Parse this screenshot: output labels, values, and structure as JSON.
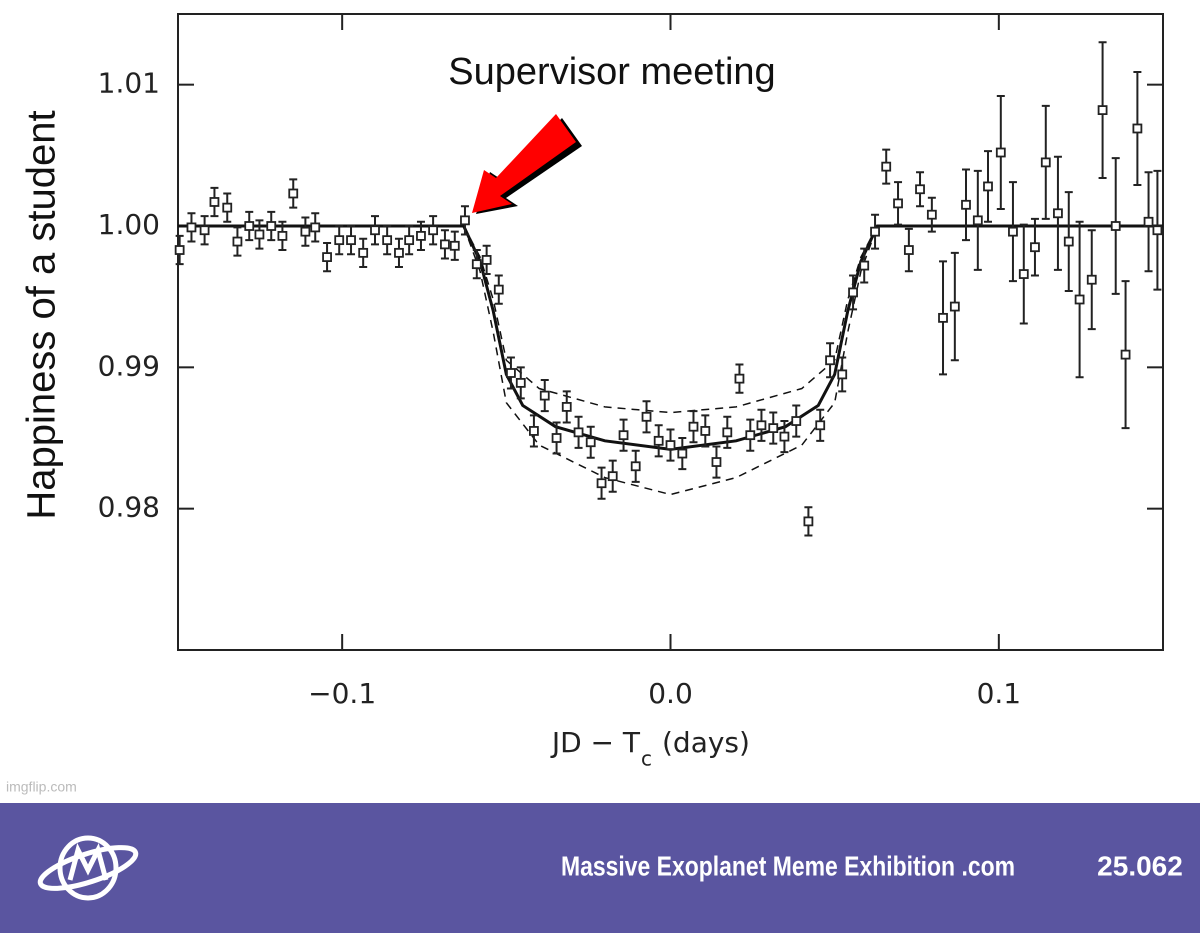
{
  "chart_data": {
    "type": "scatter",
    "annotation": "Supervisor meeting",
    "ylabel": "Happiness of a student",
    "xlabel": "JD − T",
    "xlabel_sub": "c",
    "xlim": [
      -0.15,
      0.15
    ],
    "ylim": [
      0.97,
      1.015
    ],
    "xticks": [
      {
        "value": -0.1,
        "label": "−0.1"
      },
      {
        "value": 0,
        "label": "0.0"
      },
      {
        "value": 0.1,
        "label": "0.1"
      }
    ],
    "yticks": [
      0.98,
      0.99,
      {
        "value": 1.0,
        "label": "1.00"
      },
      1.01
    ],
    "series": [
      {
        "color": "#222222",
        "x": [
          -0.1495,
          -0.1459,
          -0.1419,
          -0.1389,
          -0.135,
          -0.1319,
          -0.1283,
          -0.1252,
          -0.1216,
          -0.1182,
          -0.1149,
          -0.1112,
          -0.1082,
          -0.1046,
          -0.1009,
          -0.0973,
          -0.0936,
          -0.09,
          -0.0863,
          -0.0827,
          -0.0796,
          -0.076,
          -0.0723,
          -0.0687,
          -0.0657,
          -0.0626,
          -0.059,
          -0.056,
          -0.0523,
          -0.0486,
          -0.0456,
          -0.0416,
          -0.0383,
          -0.0347,
          -0.0316,
          -0.028,
          -0.0243,
          -0.021,
          -0.0176,
          -0.0143,
          -0.0106,
          -0.0073,
          -0.0036,
          0,
          0.0036,
          0.007,
          0.0106,
          0.014,
          0.0173,
          0.021,
          0.0243,
          0.0277,
          0.0313,
          0.0347,
          0.0383,
          0.042,
          0.0456,
          0.0486,
          0.0523,
          0.0556,
          0.059,
          0.0623,
          0.0657,
          0.0693,
          0.0726,
          0.076,
          0.0796,
          0.083,
          0.0866,
          0.09,
          0.0936,
          0.0967,
          0.1006,
          0.1043,
          0.1076,
          0.111,
          0.1143,
          0.118,
          0.1213,
          0.1246,
          0.1283,
          0.1316,
          0.1356,
          0.1386,
          0.1422,
          0.1456,
          0.1483
        ],
        "values": [
          0.9983,
          0.9999,
          0.9997,
          1.0017,
          1.0013,
          0.9989,
          1.0,
          0.9994,
          1.0,
          0.9993,
          1.0023,
          0.9996,
          0.9999,
          0.9978,
          0.999,
          0.999,
          0.9981,
          0.9997,
          0.999,
          0.9981,
          0.999,
          0.9993,
          0.9997,
          0.9987,
          0.9986,
          1.0004,
          0.9973,
          0.9976,
          0.9955,
          0.9896,
          0.9889,
          0.9855,
          0.988,
          0.985,
          0.9872,
          0.9854,
          0.9847,
          0.9818,
          0.9823,
          0.9852,
          0.983,
          0.9865,
          0.9848,
          0.9845,
          0.9839,
          0.9858,
          0.9855,
          0.9833,
          0.9854,
          0.9892,
          0.9852,
          0.9859,
          0.9857,
          0.9851,
          0.9862,
          0.9791,
          0.9859,
          0.9905,
          0.9895,
          0.9953,
          0.9972,
          0.9996,
          1.0042,
          1.0016,
          0.9983,
          1.0026,
          1.0008,
          0.9935,
          0.9943,
          1.0015,
          1.0004,
          1.0028,
          1.0052,
          0.9996,
          0.9966,
          0.9985,
          1.0045,
          1.0009,
          0.9989,
          0.9948,
          0.9962,
          1.0082,
          1.0,
          0.9909,
          1.0069,
          1.0003,
          0.9997
        ],
        "errors": [
          0.001,
          0.001,
          0.001,
          0.001,
          0.001,
          0.001,
          0.001,
          0.001,
          0.001,
          0.001,
          0.001,
          0.001,
          0.001,
          0.001,
          0.001,
          0.001,
          0.001,
          0.001,
          0.001,
          0.001,
          0.001,
          0.001,
          0.001,
          0.001,
          0.001,
          0.001,
          0.001,
          0.001,
          0.001,
          0.0011,
          0.0011,
          0.0011,
          0.0011,
          0.0011,
          0.0011,
          0.0011,
          0.0011,
          0.0011,
          0.0011,
          0.0011,
          0.0011,
          0.0011,
          0.0011,
          0.0011,
          0.0011,
          0.0011,
          0.0011,
          0.0011,
          0.0011,
          0.001,
          0.0011,
          0.0011,
          0.0011,
          0.0011,
          0.0011,
          0.001,
          0.0011,
          0.0012,
          0.0012,
          0.0012,
          0.0012,
          0.0012,
          0.0012,
          0.0015,
          0.0015,
          0.0012,
          0.0012,
          0.004,
          0.0038,
          0.0025,
          0.0035,
          0.0025,
          0.004,
          0.0035,
          0.0035,
          0.002,
          0.004,
          0.004,
          0.0035,
          0.0055,
          0.0035,
          0.0048,
          0.0048,
          0.0052,
          0.004,
          0.0035,
          0.0042
        ]
      }
    ],
    "lines": [
      {
        "dashed": false,
        "x": [
          -0.15,
          -0.063,
          -0.058,
          -0.054,
          -0.05,
          -0.045,
          -0.035,
          -0.02,
          0,
          0.02,
          0.035,
          0.045,
          0.05,
          0.054,
          0.058,
          0.063,
          0.15
        ],
        "values": [
          1,
          1,
          0.9975,
          0.994,
          0.9895,
          0.9873,
          0.9858,
          0.9848,
          0.9842,
          0.9848,
          0.9858,
          0.9873,
          0.9895,
          0.994,
          0.9975,
          1,
          1
        ]
      },
      {
        "dashed": true,
        "x": [
          -0.063,
          -0.058,
          -0.054,
          -0.05,
          -0.04,
          -0.02,
          0,
          0.02,
          0.04,
          0.05,
          0.054,
          0.058,
          0.063
        ],
        "values": [
          1,
          0.9978,
          0.9948,
          0.9905,
          0.9885,
          0.9872,
          0.9868,
          0.9872,
          0.9885,
          0.9905,
          0.9948,
          0.9978,
          1
        ]
      },
      {
        "dashed": true,
        "x": [
          -0.063,
          -0.058,
          -0.054,
          -0.05,
          -0.04,
          -0.02,
          0,
          0.02,
          0.04,
          0.05,
          0.054,
          0.058,
          0.063
        ],
        "values": [
          1,
          0.9968,
          0.9925,
          0.9875,
          0.9845,
          0.9822,
          0.981,
          0.9822,
          0.9845,
          0.9875,
          0.9925,
          0.9968,
          1
        ]
      }
    ]
  },
  "watermark": "imgflip.com",
  "footer": {
    "site": "Massive Exoplanet Meme Exhibition .com",
    "number": "25.062"
  }
}
